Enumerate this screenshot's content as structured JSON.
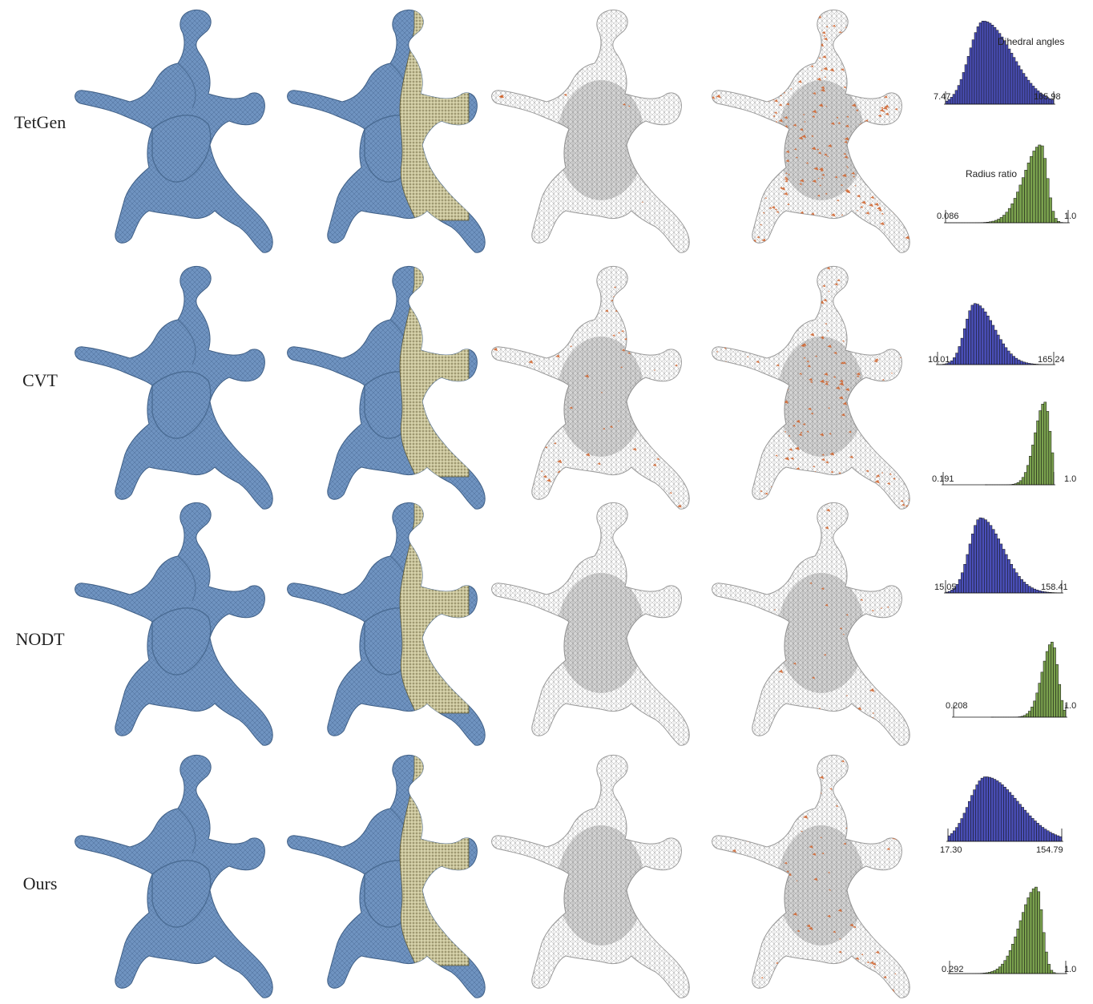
{
  "figure": {
    "rows": [
      {
        "label": "TetGen",
        "dihedral": {
          "min": "7.47",
          "max": "165.98",
          "title": "Dihedral angles"
        },
        "radius": {
          "min": "0.086",
          "max": "1.0",
          "title": "Radius ratio"
        },
        "slivers_light": 14,
        "slivers_heavy": 420
      },
      {
        "label": "CVT",
        "dihedral": {
          "min": "10.01",
          "max": "165.24",
          "title": ""
        },
        "radius": {
          "min": "0.191",
          "max": "1.0",
          "title": ""
        },
        "slivers_light": 110,
        "slivers_heavy": 300
      },
      {
        "label": "NODT",
        "dihedral": {
          "min": "15.05",
          "max": "158.41",
          "title": ""
        },
        "radius": {
          "min": "0.208",
          "max": "1.0",
          "title": ""
        },
        "slivers_light": 0,
        "slivers_heavy": 90
      },
      {
        "label": "Ours",
        "dihedral": {
          "min": "17.30",
          "max": "154.79",
          "title": ""
        },
        "radius": {
          "min": "0.292",
          "max": "1.0",
          "title": ""
        },
        "slivers_light": 0,
        "slivers_heavy": 150
      }
    ],
    "colors": {
      "surface": "#6f93c0",
      "surface_edge": "#3f5f86",
      "cut": "#c8c39a",
      "wire": "#8a8a8a",
      "sliver": "#d0622a",
      "dihedral_bar": "#4a4fb8",
      "radius_bar": "#7aa14e"
    }
  },
  "chart_data": [
    {
      "type": "bar",
      "title": "Dihedral angles",
      "series": [
        {
          "name": "TetGen",
          "min": 7.47,
          "max": 165.98,
          "peak": 60
        },
        {
          "name": "CVT",
          "min": 10.01,
          "max": 165.24,
          "peak": 65
        },
        {
          "name": "NODT",
          "min": 15.05,
          "max": 158.41,
          "peak": 62
        },
        {
          "name": "Ours",
          "min": 17.3,
          "max": 154.79,
          "peak": 62
        }
      ]
    },
    {
      "type": "bar",
      "title": "Radius ratio",
      "series": [
        {
          "name": "TetGen",
          "min": 0.086,
          "max": 1.0,
          "peak": 0.9
        },
        {
          "name": "CVT",
          "min": 0.191,
          "max": 1.0,
          "peak": 0.95
        },
        {
          "name": "NODT",
          "min": 0.208,
          "max": 1.0,
          "peak": 0.95
        },
        {
          "name": "Ours",
          "min": 0.292,
          "max": 1.0,
          "peak": 0.9
        }
      ]
    }
  ]
}
